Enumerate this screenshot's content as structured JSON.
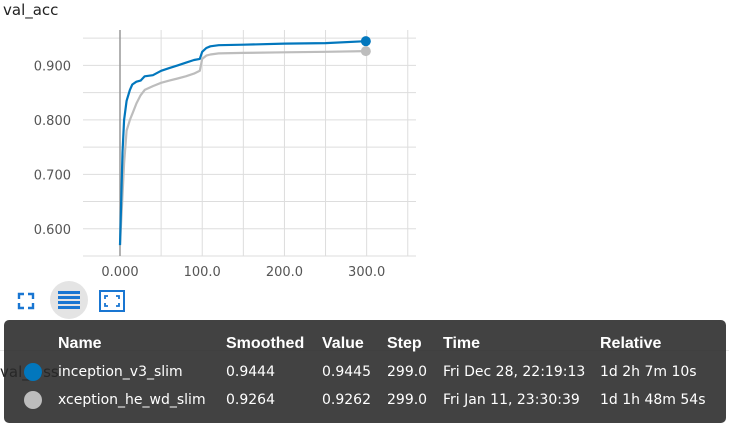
{
  "chart": {
    "title": "val_acc"
  },
  "chart_data": {
    "type": "line",
    "title": "val_acc",
    "xlabel": "",
    "ylabel": "",
    "xlim": [
      -45,
      360
    ],
    "ylim": [
      0.55,
      0.965
    ],
    "x_ticks": [
      0,
      100,
      200,
      300
    ],
    "x_tick_labels": [
      "0.000",
      "100.0",
      "200.0",
      "300.0"
    ],
    "y_ticks": [
      0.6,
      0.7,
      0.8,
      0.9
    ],
    "y_tick_labels": [
      "0.600",
      "0.700",
      "0.800",
      "0.900"
    ],
    "grid": true,
    "series": [
      {
        "name": "inception_v3_slim",
        "color": "#0277bd",
        "x": [
          0,
          3,
          5,
          8,
          12,
          15,
          20,
          25,
          30,
          40,
          50,
          60,
          70,
          80,
          90,
          97,
          100,
          105,
          110,
          120,
          150,
          200,
          250,
          299
        ],
        "y": [
          0.57,
          0.74,
          0.8,
          0.835,
          0.855,
          0.865,
          0.87,
          0.872,
          0.88,
          0.882,
          0.89,
          0.895,
          0.9,
          0.905,
          0.91,
          0.912,
          0.925,
          0.932,
          0.935,
          0.937,
          0.938,
          0.94,
          0.941,
          0.9445
        ]
      },
      {
        "name": "xception_he_wd_slim",
        "color": "#bdbdbd",
        "x": [
          0,
          5,
          8,
          12,
          16,
          20,
          25,
          30,
          40,
          50,
          60,
          70,
          80,
          90,
          97,
          100,
          105,
          110,
          120,
          150,
          200,
          250,
          299
        ],
        "y": [
          0.57,
          0.72,
          0.78,
          0.8,
          0.815,
          0.83,
          0.845,
          0.855,
          0.862,
          0.868,
          0.872,
          0.876,
          0.88,
          0.885,
          0.89,
          0.912,
          0.918,
          0.92,
          0.922,
          0.923,
          0.924,
          0.925,
          0.9262
        ]
      }
    ]
  },
  "toolbar": {
    "expand_icon": "fullscreen-corners-icon",
    "data_toggle_icon": "list-lines-icon",
    "fit_domain_icon": "fit-to-domain-icon"
  },
  "background": {
    "partial_label": "val_loss"
  },
  "tooltip": {
    "headers": {
      "name": "Name",
      "smoothed": "Smoothed",
      "value": "Value",
      "step": "Step",
      "time": "Time",
      "relative": "Relative"
    },
    "rows": [
      {
        "name": "inception_v3_slim",
        "smoothed": "0.9444",
        "value": "0.9445",
        "step": "299.0",
        "time": "Fri Dec 28, 22:19:13",
        "relative": "1d 2h 7m 10s",
        "color": "#0277bd"
      },
      {
        "name": "xception_he_wd_slim",
        "smoothed": "0.9264",
        "value": "0.9262",
        "step": "299.0",
        "time": "Fri Jan 11, 23:30:39",
        "relative": "1d 1h 48m 54s",
        "color": "#bdbdbd"
      }
    ]
  }
}
